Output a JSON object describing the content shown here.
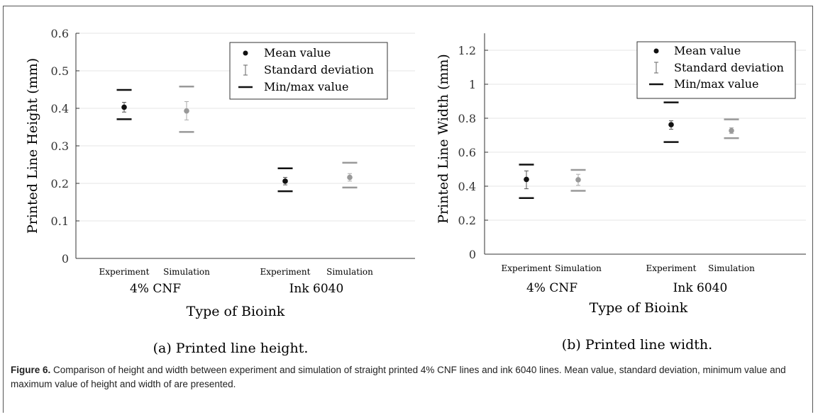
{
  "colors": {
    "experiment": "#111111",
    "simulation": "#999999",
    "axis": "#333333",
    "grid": "#e6e6e6"
  },
  "figure_caption": {
    "label": "Figure 6.",
    "text": "Comparison of height and width between experiment and simulation of straight printed 4% CNF lines and ink 6040 lines. Mean value, standard deviation, minimum value and maximum value of height and width of are presented."
  },
  "chart_data": [
    {
      "type": "errorbar",
      "subcaption": "(a) Printed line height.",
      "xlabel": "Type of Bioink",
      "ylabel": "Printed Line Height (mm)",
      "ylim": [
        0,
        0.6
      ],
      "yticks": [
        "0",
        "0.1",
        "0.2",
        "0.3",
        "0.4",
        "0.5",
        "0.6"
      ],
      "groups": [
        "4% CNF",
        "Ink 6040"
      ],
      "categories": [
        "Experiment",
        "Simulation",
        "Experiment",
        "Simulation"
      ],
      "legend": {
        "position": "top-right",
        "entries": [
          "Mean value",
          "Standard deviation",
          "Min/max value"
        ]
      },
      "points": [
        {
          "group": "4% CNF",
          "category": "Experiment",
          "series": "experiment",
          "mean": 0.403,
          "std_low": 0.39,
          "std_high": 0.416,
          "min": 0.371,
          "max": 0.449
        },
        {
          "group": "4% CNF",
          "category": "Simulation",
          "series": "simulation",
          "mean": 0.393,
          "std_low": 0.369,
          "std_high": 0.418,
          "min": 0.337,
          "max": 0.458
        },
        {
          "group": "Ink 6040",
          "category": "Experiment",
          "series": "experiment",
          "mean": 0.206,
          "std_low": 0.196,
          "std_high": 0.216,
          "min": 0.179,
          "max": 0.24
        },
        {
          "group": "Ink 6040",
          "category": "Simulation",
          "series": "simulation",
          "mean": 0.216,
          "std_low": 0.206,
          "std_high": 0.226,
          "min": 0.189,
          "max": 0.255
        }
      ]
    },
    {
      "type": "errorbar",
      "subcaption": "(b) Printed line width.",
      "xlabel": "Type of Bioink",
      "ylabel": "Printed Line Width (mm)",
      "ylim": [
        0,
        1.3
      ],
      "yticks": [
        "0",
        "0.2",
        "0.4",
        "0.6",
        "0.8",
        "1",
        "1.2"
      ],
      "groups": [
        "4% CNF",
        "Ink 6040"
      ],
      "categories": [
        "Experiment",
        "Simulation",
        "Experiment",
        "Simulation"
      ],
      "legend": {
        "position": "top-right",
        "entries": [
          "Mean value",
          "Standard deviation",
          "Min/max value"
        ]
      },
      "points": [
        {
          "group": "4% CNF",
          "category": "Experiment",
          "series": "experiment",
          "mean": 0.44,
          "std_low": 0.385,
          "std_high": 0.49,
          "min": 0.33,
          "max": 0.527
        },
        {
          "group": "4% CNF",
          "category": "Simulation",
          "series": "simulation",
          "mean": 0.438,
          "std_low": 0.405,
          "std_high": 0.47,
          "min": 0.373,
          "max": 0.496
        },
        {
          "group": "Ink 6040",
          "category": "Experiment",
          "series": "experiment",
          "mean": 0.762,
          "std_low": 0.735,
          "std_high": 0.785,
          "min": 0.66,
          "max": 0.893
        },
        {
          "group": "Ink 6040",
          "category": "Simulation",
          "series": "simulation",
          "mean": 0.727,
          "std_low": 0.71,
          "std_high": 0.744,
          "min": 0.683,
          "max": 0.793
        }
      ]
    }
  ]
}
